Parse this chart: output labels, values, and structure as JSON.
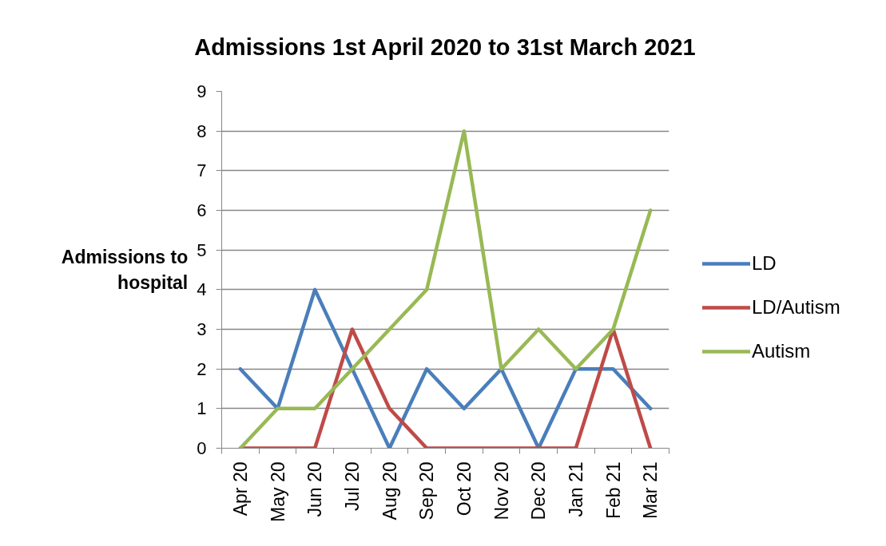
{
  "chart_data": {
    "type": "line",
    "title": "Admissions 1st April 2020 to 31st March 2021",
    "ylabel": "Admissions to hospital",
    "categories": [
      "Apr 20",
      "May 20",
      "Jun 20",
      "Jul 20",
      "Aug 20",
      "Sep 20",
      "Oct 20",
      "Nov 20",
      "Dec 20",
      "Jan 21",
      "Feb 21",
      "Mar 21"
    ],
    "series": [
      {
        "name": "LD",
        "color": "#4a7ebb",
        "values": [
          2,
          1,
          4,
          2,
          0,
          2,
          1,
          2,
          0,
          2,
          2,
          1
        ]
      },
      {
        "name": "LD/Autism",
        "color": "#be4b48",
        "values": [
          0,
          0,
          0,
          3,
          1,
          0,
          0,
          0,
          0,
          0,
          3,
          0
        ]
      },
      {
        "name": "Autism",
        "color": "#98b954",
        "values": [
          0,
          1,
          1,
          2,
          3,
          4,
          8,
          2,
          3,
          2,
          3,
          6
        ]
      }
    ],
    "ylim": [
      0,
      9
    ],
    "yticks": [
      0,
      1,
      2,
      3,
      4,
      5,
      6,
      7,
      8,
      9
    ],
    "grid": "y",
    "legend": "right"
  }
}
